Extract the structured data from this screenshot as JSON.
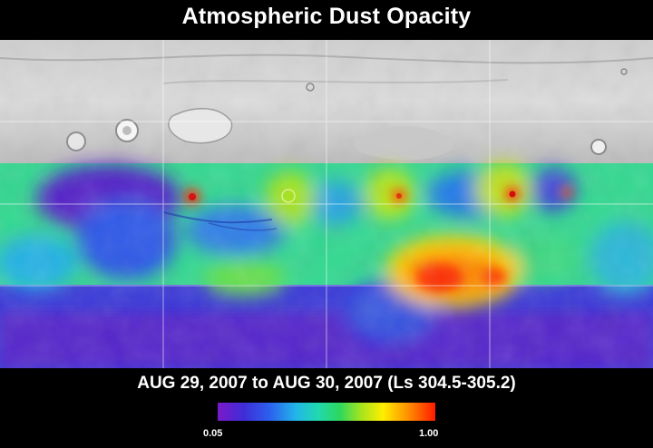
{
  "title": "Atmospheric Dust Opacity",
  "date_range": "AUG 29, 2007 to AUG 30, 2007 (Ls 304.5-305.2)",
  "scale": {
    "min_label": "0.05",
    "max_label": "1.00",
    "colors": [
      "#7a19c8",
      "#3f2dd8",
      "#2b61ee",
      "#22b6e8",
      "#20d9b0",
      "#2cd75d",
      "#a7e41e",
      "#ffee00",
      "#ff8b00",
      "#ff1a00"
    ]
  },
  "map": {
    "no_data_color": "#d6d6d6",
    "grid_color": "#ffffff"
  }
}
